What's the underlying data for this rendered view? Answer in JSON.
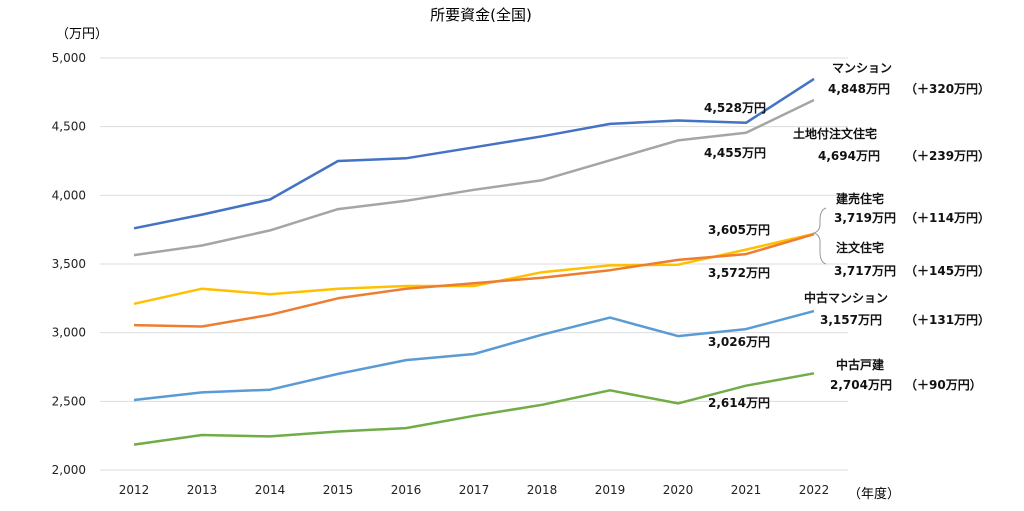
{
  "chart_data": {
    "type": "line",
    "title": "所要資金(全国)",
    "ylabel": "（万円）",
    "xlabel": "（年度）",
    "x": [
      "2012",
      "2013",
      "2014",
      "2015",
      "2016",
      "2017",
      "2018",
      "2019",
      "2020",
      "2021",
      "2022"
    ],
    "ylim": [
      2000,
      5000
    ],
    "yticks": [
      "2,000",
      "2,500",
      "3,000",
      "3,500",
      "4,000",
      "4,500",
      "5,000"
    ],
    "grid": true,
    "series": [
      {
        "name": "マンション",
        "color": "#4472C4",
        "values": [
          3760,
          3860,
          3970,
          4250,
          4270,
          4350,
          4430,
          4520,
          4545,
          4528,
          4848
        ],
        "labels": [
          "4,528万円",
          "4,848万円",
          "（＋320万円）"
        ]
      },
      {
        "name": "土地付注文住宅",
        "color": "#A5A5A5",
        "values": [
          3565,
          3635,
          3745,
          3900,
          3960,
          4040,
          4110,
          4255,
          4400,
          4455,
          4694
        ],
        "labels": [
          "4,455万円",
          "4,694万円",
          "（＋239万円）"
        ]
      },
      {
        "name": "建売住宅",
        "color": "#FFC000",
        "values": [
          3210,
          3320,
          3280,
          3320,
          3340,
          3340,
          3440,
          3490,
          3495,
          3605,
          3719
        ],
        "labels": [
          "3,605万円",
          "3,719万円",
          "（＋114万円）"
        ]
      },
      {
        "name": "注文住宅",
        "color": "#ED7D31",
        "values": [
          3055,
          3045,
          3130,
          3250,
          3320,
          3360,
          3400,
          3455,
          3530,
          3572,
          3717
        ],
        "labels": [
          "3,572万円",
          "3,717万円",
          "（＋145万円）"
        ]
      },
      {
        "name": "中古マンション",
        "color": "#5B9BD5",
        "values": [
          2510,
          2565,
          2585,
          2700,
          2800,
          2845,
          2985,
          3110,
          2975,
          3026,
          3157
        ],
        "labels": [
          "3,026万円",
          "3,157万円",
          "（＋131万円）"
        ]
      },
      {
        "name": "中古戸建",
        "color": "#70AD47",
        "values": [
          2185,
          2255,
          2245,
          2280,
          2305,
          2395,
          2475,
          2580,
          2485,
          2614,
          2704
        ],
        "labels": [
          "2,614万円",
          "2,704万円",
          "（＋90万円）"
        ]
      }
    ]
  }
}
